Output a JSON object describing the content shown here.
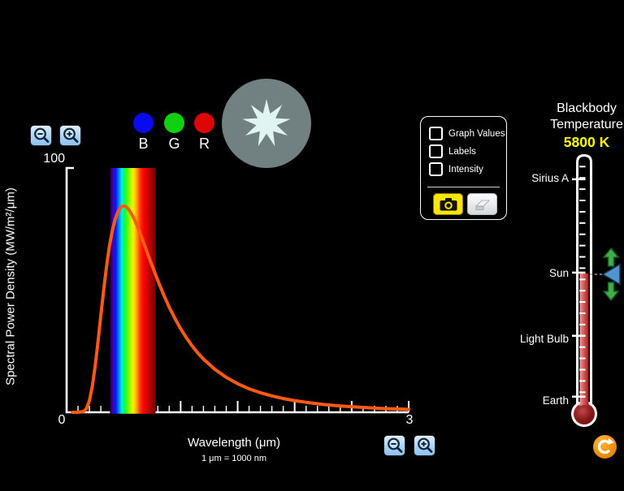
{
  "colors": {
    "background": "#000000",
    "curve": "#ff5a14",
    "zoom_button": "#a9d4f5",
    "camera_button": "#ffe600",
    "temperature_value": "#ffff00",
    "thermometer_fluid": "#c62f2f",
    "slider_triangle": "#4f94cd",
    "slider_arrows": "#3fae4a",
    "reset_button": "#f28b00",
    "star_circle": "#718080",
    "star": "#e1f5f0",
    "indicator_blue": "#0a0af0",
    "indicator_green": "#0fd10f",
    "indicator_red": "#e00505"
  },
  "rgb_indicators": {
    "labels": [
      "B",
      "G",
      "R"
    ]
  },
  "graph": {
    "y_max_label": "100",
    "origin_label": "0",
    "x_max_label": "3",
    "x_axis_title": "Wavelength (μm)",
    "x_axis_note": "1 μm  =  1000 nm",
    "y_axis_title": "Spectral Power Density (MW/m²/μm)"
  },
  "chart_data": {
    "type": "line",
    "xlabel": "Wavelength (μm)",
    "ylabel": "Spectral Power Density (MW/m²/μm)",
    "xlim": [
      0,
      3
    ],
    "ylim": [
      0,
      100
    ],
    "x_tick_labels_visible": [
      "0",
      "3"
    ],
    "y_tick_labels_visible": [
      "0",
      "100"
    ],
    "x_minor_tick_step": 0.1,
    "x_major_tick_step": 0.5,
    "grid": false,
    "visible_spectrum_band_um": [
      0.38,
      0.78
    ],
    "spectrum_gradient": [
      [
        0,
        "#1e0038"
      ],
      [
        0.07,
        "#4400c0"
      ],
      [
        0.13,
        "#0018ff"
      ],
      [
        0.2,
        "#0090ff"
      ],
      [
        0.26,
        "#00f0e0"
      ],
      [
        0.32,
        "#00ff40"
      ],
      [
        0.4,
        "#70ff00"
      ],
      [
        0.48,
        "#d8ff00"
      ],
      [
        0.53,
        "#ffe000"
      ],
      [
        0.6,
        "#ff8c00"
      ],
      [
        0.66,
        "#ff3800"
      ],
      [
        0.72,
        "#ff0800"
      ],
      [
        0.8,
        "#e00000"
      ],
      [
        0.9,
        "#a80000"
      ],
      [
        1,
        "#700000"
      ]
    ],
    "series": [
      {
        "name": "Blackbody spectral power density at 5800 K",
        "color": "#ff5a14",
        "points": [
          [
            0.05,
            0
          ],
          [
            0.1,
            0
          ],
          [
            0.15,
            0.3
          ],
          [
            0.175,
            1.6
          ],
          [
            0.2,
            4.8
          ],
          [
            0.225,
            10.6
          ],
          [
            0.25,
            18.8
          ],
          [
            0.275,
            28.8
          ],
          [
            0.3,
            39.6
          ],
          [
            0.325,
            50
          ],
          [
            0.35,
            59.6
          ],
          [
            0.375,
            67.8
          ],
          [
            0.4,
            74.1
          ],
          [
            0.425,
            78.9
          ],
          [
            0.45,
            82.1
          ],
          [
            0.475,
            84
          ],
          [
            0.5,
            84.5
          ],
          [
            0.525,
            84
          ],
          [
            0.55,
            82.7
          ],
          [
            0.575,
            80.7
          ],
          [
            0.6,
            78.4
          ],
          [
            0.625,
            75.6
          ],
          [
            0.65,
            72.7
          ],
          [
            0.675,
            69.5
          ],
          [
            0.7,
            66.3
          ],
          [
            0.725,
            63.1
          ],
          [
            0.75,
            60
          ],
          [
            0.775,
            56.9
          ],
          [
            0.8,
            53.9
          ],
          [
            0.85,
            48.2
          ],
          [
            0.9,
            43
          ],
          [
            0.95,
            38.4
          ],
          [
            1,
            34.2
          ],
          [
            1.05,
            30.5
          ],
          [
            1.1,
            27.2
          ],
          [
            1.15,
            24.3
          ],
          [
            1.2,
            21.8
          ],
          [
            1.3,
            17.6
          ],
          [
            1.4,
            14.3
          ],
          [
            1.5,
            11.7
          ],
          [
            1.6,
            9.6
          ],
          [
            1.7,
            8
          ],
          [
            1.8,
            6.7
          ],
          [
            1.9,
            5.6
          ],
          [
            2,
            4.8
          ],
          [
            2.1,
            4.1
          ],
          [
            2.25,
            3.2
          ],
          [
            2.4,
            2.6
          ],
          [
            2.5,
            2.3
          ],
          [
            2.6,
            2
          ],
          [
            2.75,
            1.6
          ],
          [
            2.8,
            1.5
          ],
          [
            3,
            1.2
          ]
        ]
      }
    ]
  },
  "control_panel": {
    "checkboxes": [
      {
        "label": "Graph Values",
        "checked": false
      },
      {
        "label": "Labels",
        "checked": false
      },
      {
        "label": "Intensity",
        "checked": false
      }
    ]
  },
  "temperature_panel": {
    "title_line1": "Blackbody",
    "title_line2": "Temperature",
    "value": "5800 K",
    "scale_labels": [
      "Sirius A",
      "Sun",
      "Light Bulb",
      "Earth"
    ]
  }
}
